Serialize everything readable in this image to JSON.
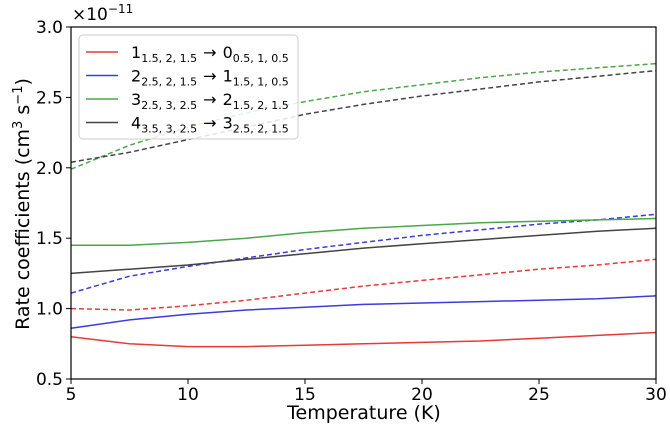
{
  "chart_data": {
    "type": "line",
    "xlabel": "Temperature (K)",
    "ylabel_main": "Rate coefficients (cm",
    "ylabel_sup1": "3",
    "ylabel_mid": " s",
    "ylabel_sup2": "−1",
    "ylabel_end": ")",
    "y_scale_base": "×10",
    "y_scale_exp": "−11",
    "xlim": [
      5,
      30
    ],
    "ylim": [
      0.5,
      3.0
    ],
    "xticks": [
      "5",
      "10",
      "15",
      "20",
      "25",
      "30"
    ],
    "yticks": [
      "0.5",
      "1.0",
      "1.5",
      "2.0",
      "2.5",
      "3.0"
    ],
    "x": [
      5,
      7.5,
      10,
      12.5,
      15,
      17.5,
      20,
      22.5,
      25,
      27.5,
      30
    ],
    "legend_position": "top-left",
    "series": [
      {
        "color": "#e8393a",
        "legend": {
          "up": "1",
          "up_sub": "1.5, 2, 1.5",
          "arrow": "→",
          "low": "0",
          "low_sub": "0.5, 1, 0.5"
        },
        "solid": [
          0.8,
          0.75,
          0.73,
          0.73,
          0.74,
          0.75,
          0.76,
          0.77,
          0.79,
          0.81,
          0.83
        ],
        "dashed": [
          1.0,
          0.99,
          1.02,
          1.06,
          1.11,
          1.16,
          1.2,
          1.24,
          1.28,
          1.31,
          1.35
        ]
      },
      {
        "color": "#3b3be0",
        "legend": {
          "up": "2",
          "up_sub": "2.5, 2, 1.5",
          "arrow": "→",
          "low": "1",
          "low_sub": "1.5, 1, 0.5"
        },
        "solid": [
          0.86,
          0.92,
          0.96,
          0.99,
          1.01,
          1.03,
          1.04,
          1.05,
          1.06,
          1.07,
          1.09
        ],
        "dashed": [
          1.11,
          1.23,
          1.3,
          1.36,
          1.42,
          1.47,
          1.52,
          1.56,
          1.6,
          1.63,
          1.67
        ]
      },
      {
        "color": "#4aa84a",
        "legend": {
          "up": "3",
          "up_sub": "2.5, 3, 2.5",
          "arrow": "→",
          "low": "2",
          "low_sub": "1.5, 2, 1.5"
        },
        "solid": [
          1.45,
          1.45,
          1.47,
          1.5,
          1.54,
          1.57,
          1.59,
          1.61,
          1.62,
          1.63,
          1.64
        ],
        "dashed": [
          1.99,
          2.16,
          2.29,
          2.39,
          2.47,
          2.54,
          2.59,
          2.64,
          2.68,
          2.71,
          2.74
        ]
      },
      {
        "color": "#444444",
        "legend": {
          "up": "4",
          "up_sub": "3.5, 3, 2.5",
          "arrow": "→",
          "low": "3",
          "low_sub": "2.5, 2, 1.5"
        },
        "solid": [
          1.25,
          1.28,
          1.31,
          1.35,
          1.39,
          1.43,
          1.46,
          1.49,
          1.52,
          1.55,
          1.57
        ],
        "dashed": [
          2.04,
          2.11,
          2.2,
          2.29,
          2.38,
          2.45,
          2.51,
          2.56,
          2.61,
          2.65,
          2.69
        ]
      }
    ]
  }
}
